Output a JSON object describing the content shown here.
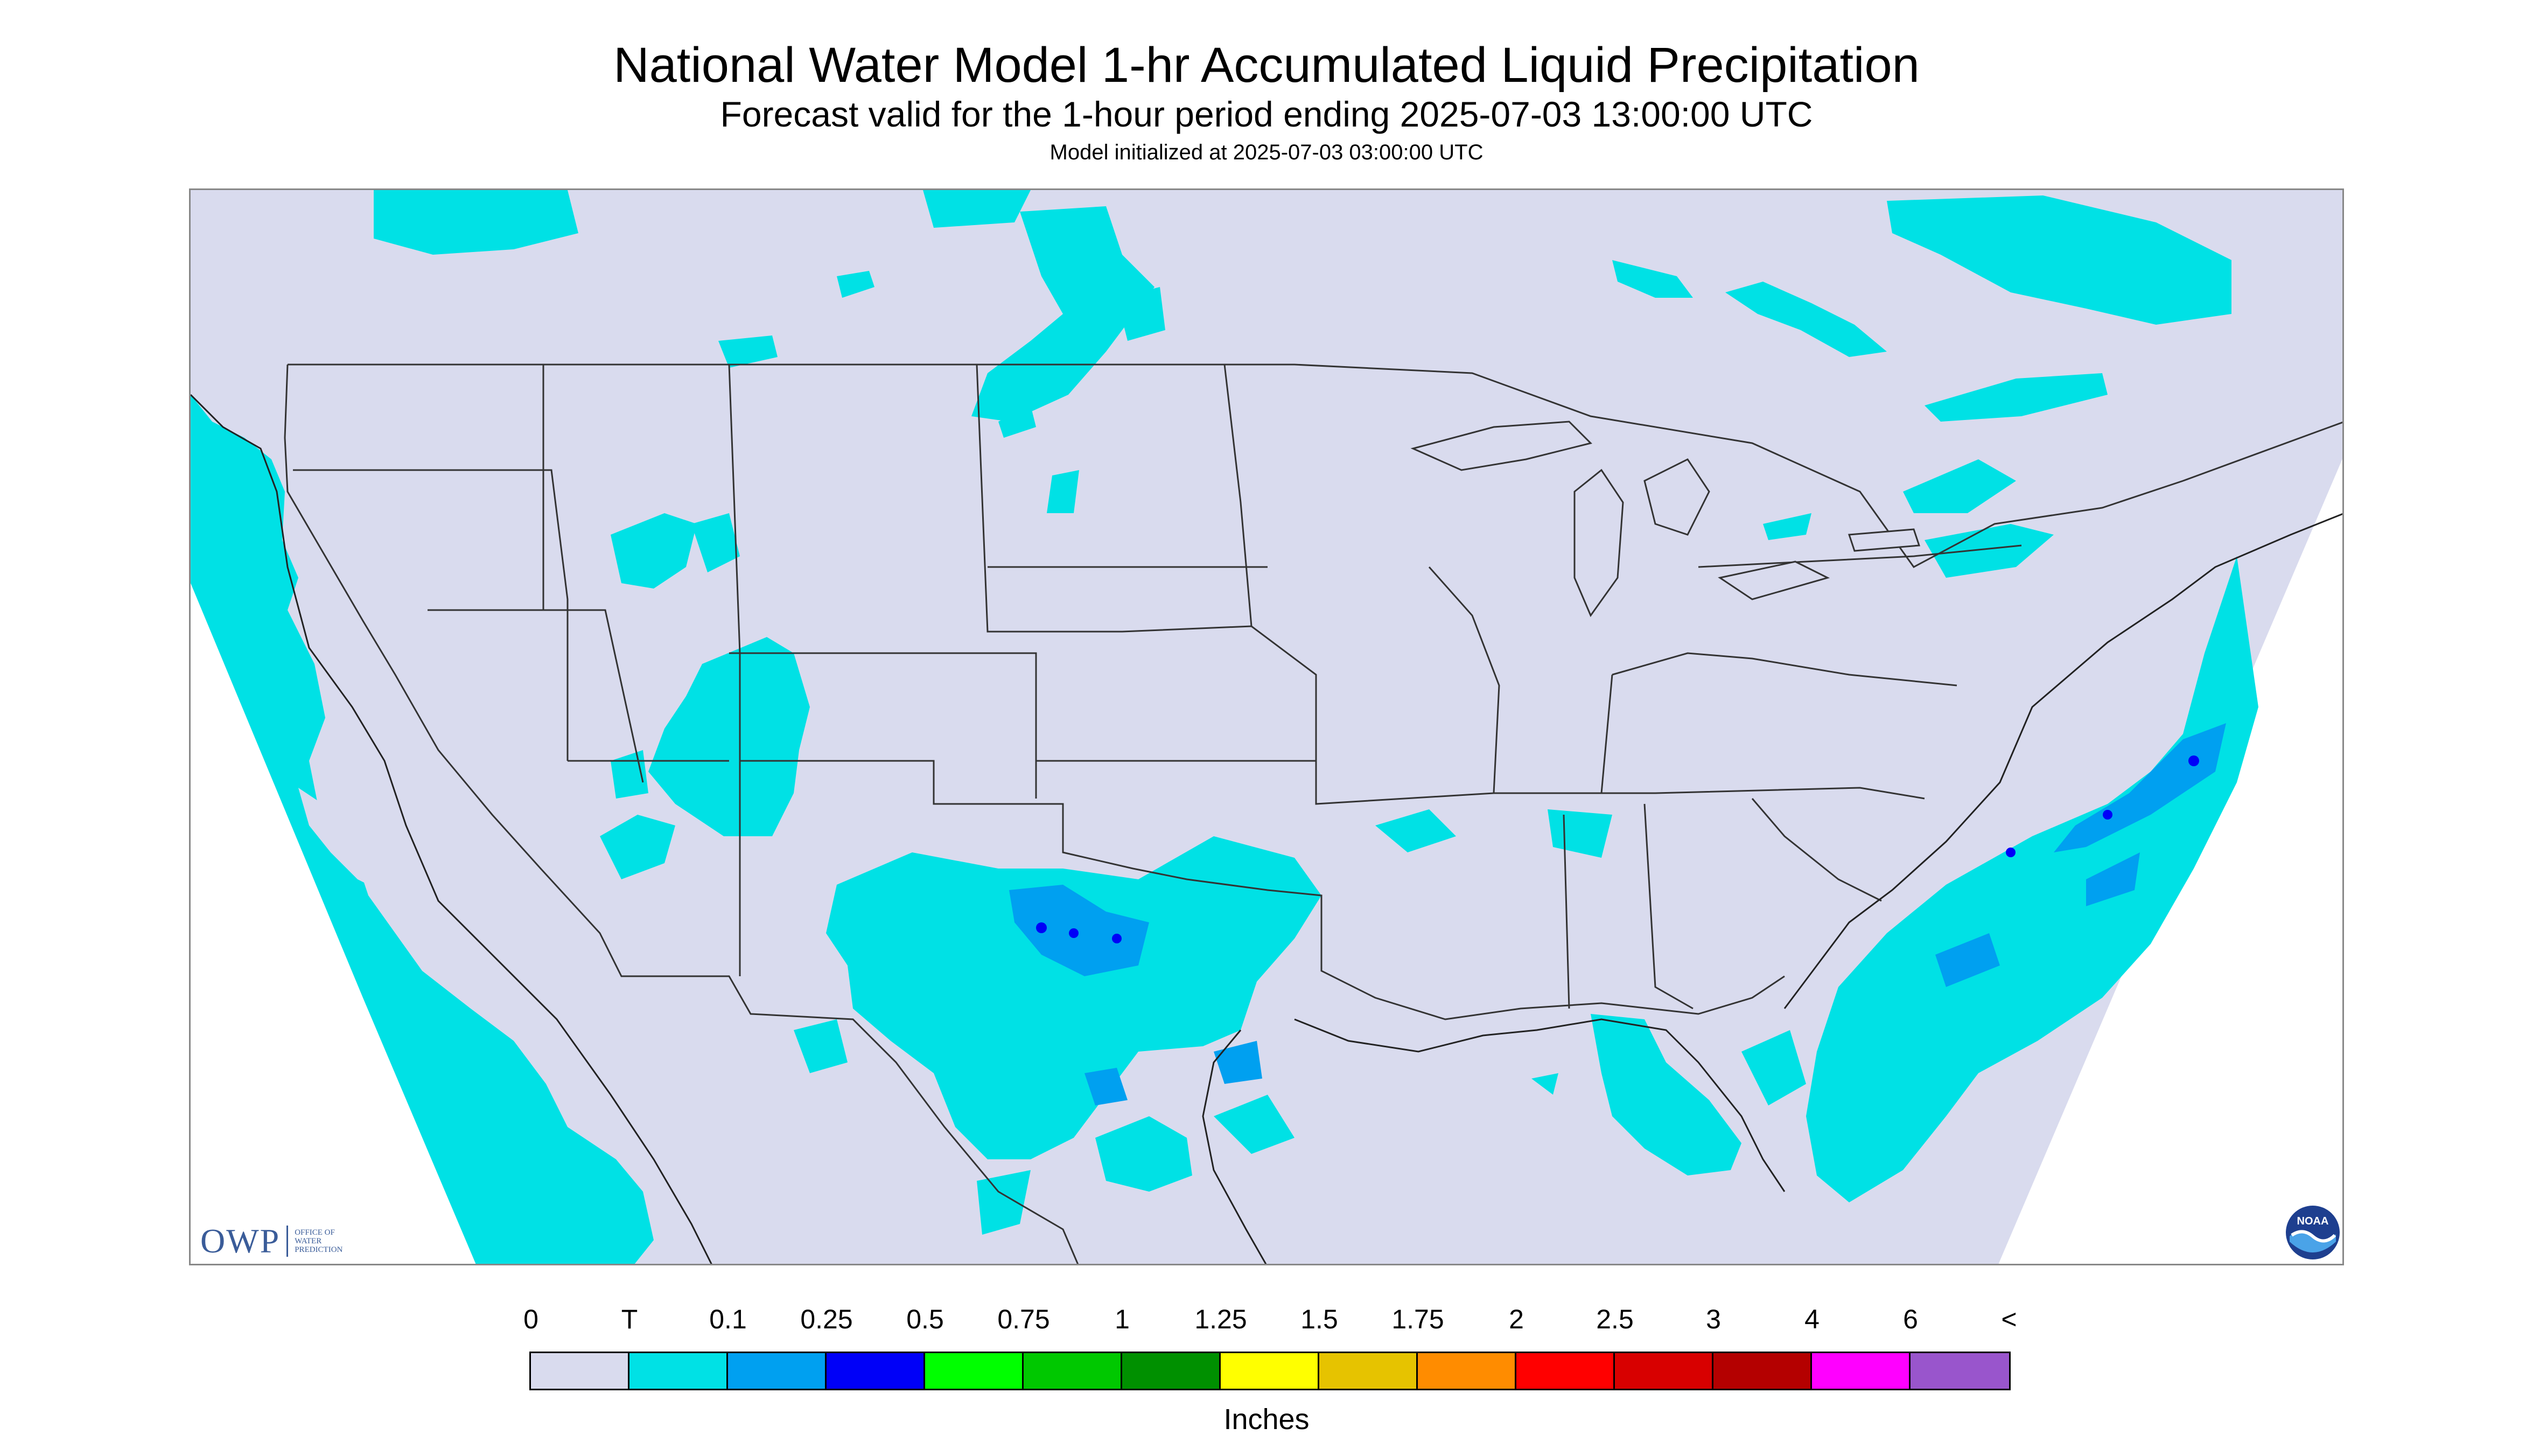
{
  "title": "National Water Model 1-hr Accumulated Liquid Precipitation",
  "subtitle": "Forecast valid for the 1-hour period ending 2025-07-03 13:00:00 UTC",
  "init_line": "Model initialized at 2025-07-03 03:00:00 UTC",
  "logo": {
    "mark": "OWP",
    "sub_lines": [
      "OFFICE OF",
      "WATER",
      "PREDICTION"
    ]
  },
  "noaa_logo": {
    "text": "NOAA",
    "icon": "noaa-seal-icon"
  },
  "legend": {
    "labels": [
      "0",
      "T",
      "0.1",
      "0.25",
      "0.5",
      "0.75",
      "1",
      "1.25",
      "1.5",
      "1.75",
      "2",
      "2.5",
      "3",
      "4",
      "6",
      "<"
    ],
    "colors": [
      "#d9dbee",
      "#00e1e5",
      "#00a0f0",
      "#0000f8",
      "#00ff00",
      "#00c800",
      "#009000",
      "#ffff00",
      "#e6c300",
      "#ff8c00",
      "#ff0000",
      "#d80000",
      "#b40000",
      "#ff00ff",
      "#9955cc"
    ],
    "units": "Inches"
  },
  "map": {
    "background_color": "#d9dbee",
    "precip_trace_color": "#00e1e5",
    "precip_light_color": "#00a0f0",
    "precip_heavy_color": "#0000f8",
    "boundary_color": "#333333"
  }
}
